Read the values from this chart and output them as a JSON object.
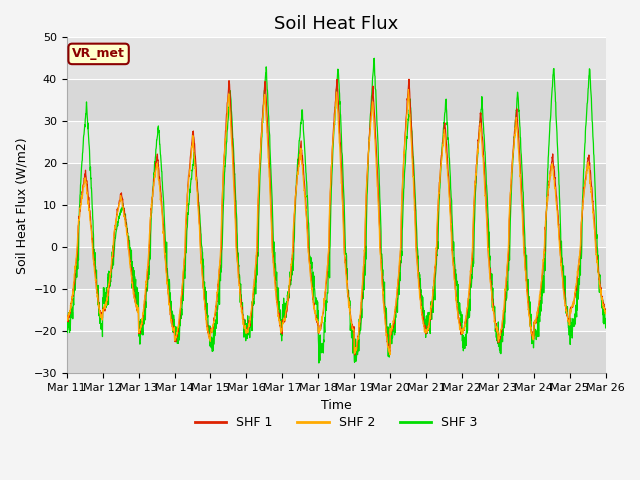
{
  "title": "Soil Heat Flux",
  "ylabel": "Soil Heat Flux (W/m2)",
  "xlabel": "Time",
  "ylim": [
    -30,
    50
  ],
  "yticks": [
    -30,
    -20,
    -10,
    0,
    10,
    20,
    30,
    40,
    50
  ],
  "xtick_labels": [
    "Mar 11",
    "Mar 12",
    "Mar 13",
    "Mar 14",
    "Mar 15",
    "Mar 16",
    "Mar 17",
    "Mar 18",
    "Mar 19",
    "Mar 20",
    "Mar 21",
    "Mar 22",
    "Mar 23",
    "Mar 24",
    "Mar 25",
    "Mar 26"
  ],
  "colors": {
    "SHF 1": "#dd2200",
    "SHF 2": "#ffaa00",
    "SHF 3": "#00dd00"
  },
  "legend_label": "VR_met",
  "bg_color": "#e0e0e0",
  "grid_color": "#ffffff",
  "title_fontsize": 13,
  "label_fontsize": 9,
  "tick_fontsize": 8,
  "n_per_day": 144,
  "n_days": 15,
  "shf1_day_peaks": [
    18,
    13,
    22,
    28,
    40,
    40,
    25,
    40,
    38,
    40,
    30,
    32,
    33,
    22,
    22
  ],
  "shf1_night_depths": [
    17,
    15,
    20,
    22,
    20,
    20,
    18,
    20,
    25,
    20,
    20,
    20,
    22,
    18,
    15
  ],
  "shf3_day_peaks": [
    34,
    10,
    29,
    22,
    37,
    43,
    33,
    43,
    45,
    35,
    35,
    35,
    37,
    43,
    43
  ],
  "shf3_night_depths": [
    20,
    12,
    20,
    22,
    22,
    20,
    15,
    25,
    25,
    20,
    18,
    22,
    23,
    20,
    20
  ]
}
